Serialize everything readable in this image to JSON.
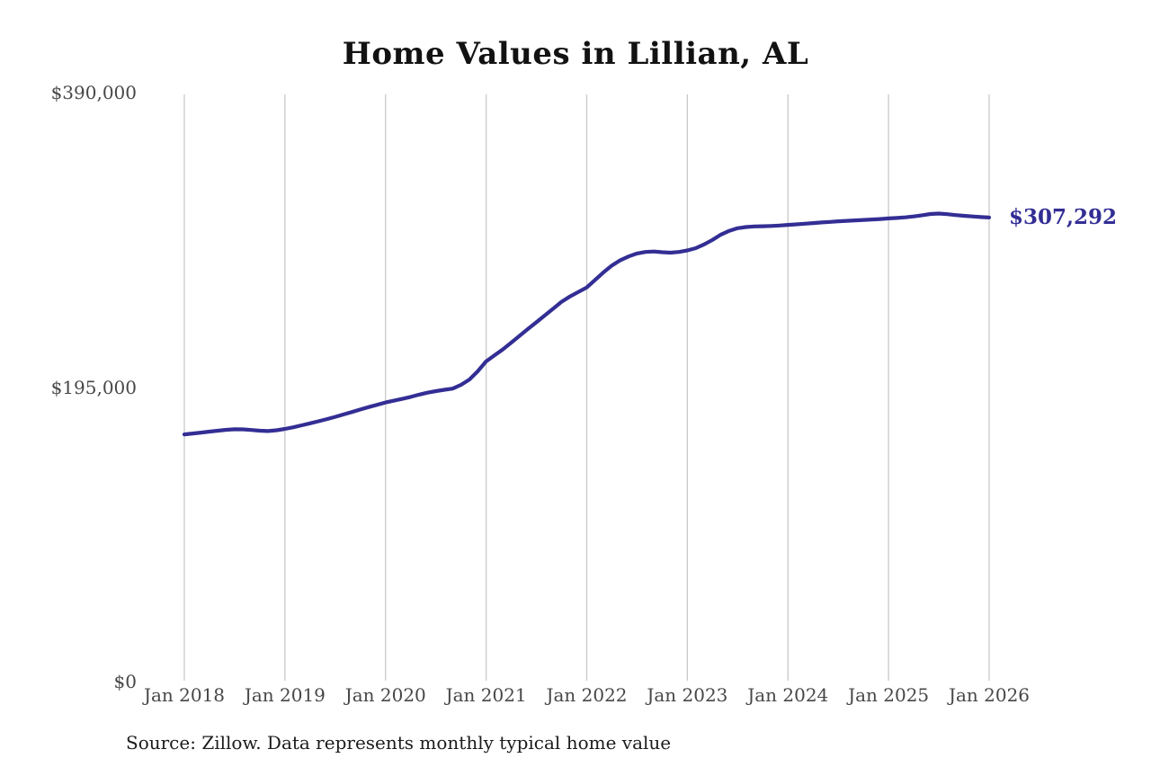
{
  "title": "Home Values in Lillian, AL",
  "source_note": "Source: Zillow. Data represents monthly typical home value",
  "end_label": "$307,292",
  "colors": {
    "line": "#332e94",
    "end_label": "#332e94",
    "grid": "#c9c9c9",
    "title": "#121212",
    "tick": "#474747"
  },
  "chart_data": {
    "type": "line",
    "title": "Home Values in Lillian, AL",
    "xlabel": "",
    "ylabel": "",
    "x_start": "2018-01",
    "x_end": "2026-01",
    "x_interval": "month",
    "x_tick_labels": [
      "Jan 2018",
      "Jan 2019",
      "Jan 2020",
      "Jan 2021",
      "Jan 2022",
      "Jan 2023",
      "Jan 2024",
      "Jan 2025",
      "Jan 2026"
    ],
    "y_ticks": [
      {
        "label": "$0",
        "value": 0
      },
      {
        "label": "$195,000",
        "value": 195000
      },
      {
        "label": "$390,000",
        "value": 390000
      }
    ],
    "ylim": [
      0,
      390000
    ],
    "grid": "vertical-only",
    "legend": "none",
    "series_name": "Typical home value",
    "end_value": 307292,
    "values": [
      163700,
      164300,
      164900,
      165500,
      166100,
      166700,
      167100,
      167000,
      166600,
      166100,
      165900,
      166400,
      167300,
      168400,
      169700,
      171000,
      172400,
      173800,
      175300,
      176900,
      178500,
      180200,
      181800,
      183300,
      184800,
      186000,
      187200,
      188500,
      190000,
      191300,
      192300,
      193200,
      194000,
      196500,
      200000,
      205500,
      212000,
      216000,
      220000,
      224500,
      229000,
      233500,
      238000,
      242500,
      247000,
      251500,
      255000,
      258000,
      261000,
      266000,
      271000,
      275500,
      279000,
      281500,
      283500,
      284500,
      284800,
      284300,
      284000,
      284500,
      285500,
      287000,
      289500,
      292500,
      296000,
      298500,
      300200,
      301000,
      301400,
      301500,
      301700,
      302000,
      302400,
      302800,
      303200,
      303600,
      304000,
      304400,
      304800,
      305100,
      305400,
      305700,
      306000,
      306300,
      306700,
      307000,
      307400,
      308000,
      308800,
      309600,
      309900,
      309500,
      308900,
      308400,
      308000,
      307600,
      307292
    ]
  }
}
